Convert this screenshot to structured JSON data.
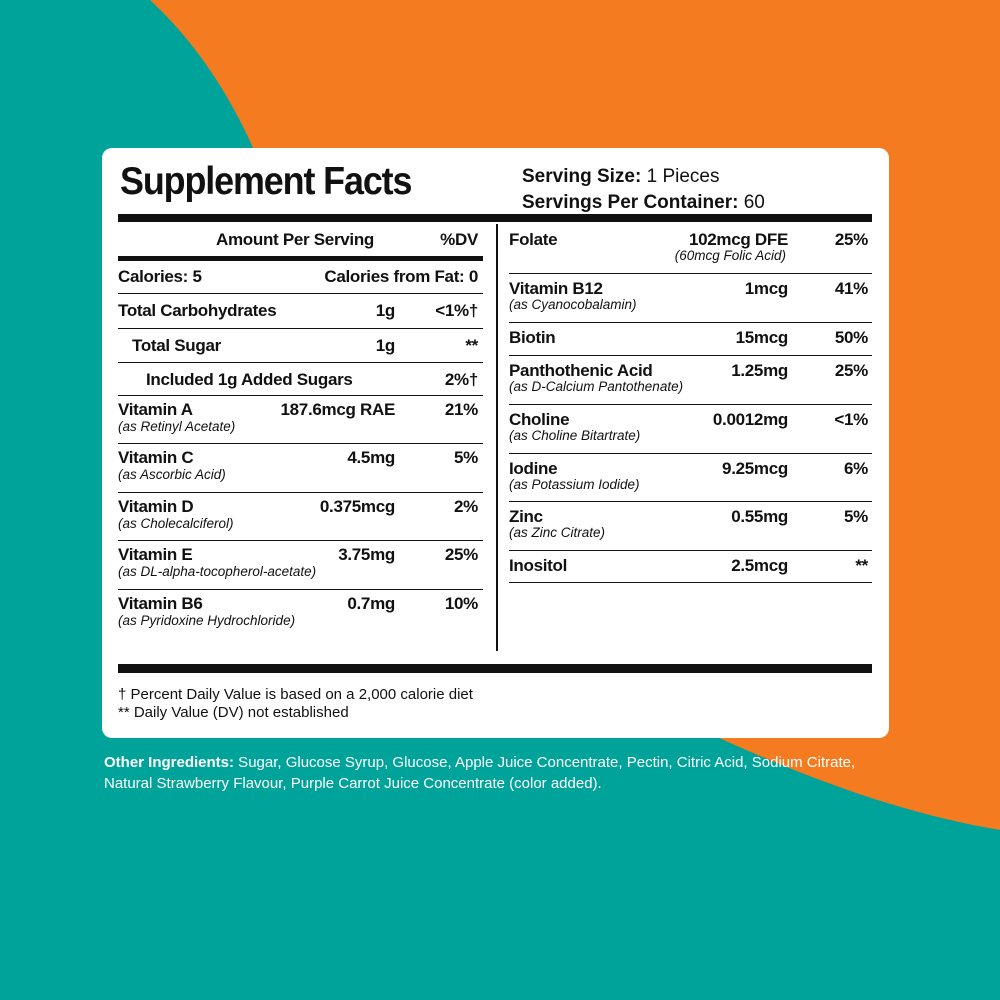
{
  "colors": {
    "teal": "#00A39A",
    "orange": "#F47B20",
    "panel": "#FFFFFF",
    "ink": "#111111"
  },
  "title": "Supplement Facts",
  "serving": {
    "size_label": "Serving Size:",
    "size_value": " 1 Pieces",
    "per_container_label": "Servings Per Container:",
    "per_container_value": " 60"
  },
  "left": {
    "header_amount": "Amount Per Serving",
    "header_dv": "%DV",
    "calories": "Calories: 5",
    "calories_fat": "Calories from Fat: 0",
    "rows": [
      {
        "name": "Total Carbohydrates",
        "amount": "1g",
        "dv": "<1%†"
      },
      {
        "name": "Total Sugar",
        "amount": "1g",
        "dv": "**"
      },
      {
        "name": "Included 1g Added Sugars",
        "amount": "",
        "dv": "2%†"
      },
      {
        "name": "Vitamin A",
        "sub": "(as Retinyl Acetate)",
        "amount": "187.6mcg RAE",
        "dv": "21%"
      },
      {
        "name": "Vitamin C",
        "sub": "(as Ascorbic Acid)",
        "amount": "4.5mg",
        "dv": "5%"
      },
      {
        "name": "Vitamin D",
        "sub": "(as Cholecalciferol)",
        "amount": "0.375mcg",
        "dv": "2%"
      },
      {
        "name": "Vitamin E",
        "sub": "(as DL-alpha-tocopherol-acetate)",
        "amount": "3.75mg",
        "dv": "25%"
      },
      {
        "name": "Vitamin B6",
        "sub": "(as Pyridoxine Hydrochloride)",
        "amount": "0.7mg",
        "dv": "10%"
      }
    ]
  },
  "right": {
    "rows": [
      {
        "name": "Folate",
        "amount": "102mcg DFE",
        "amount_sub": "(60mcg Folic Acid)",
        "dv": "25%"
      },
      {
        "name": "Vitamin B12",
        "sub": "(as Cyanocobalamin)",
        "amount": "1mcg",
        "dv": "41%"
      },
      {
        "name": "Biotin",
        "amount": "15mcg",
        "dv": "50%"
      },
      {
        "name": "Panthothenic Acid",
        "sub": "(as D-Calcium Pantothenate)",
        "amount": "1.25mg",
        "dv": "25%"
      },
      {
        "name": "Choline",
        "sub": "(as Choline Bitartrate)",
        "amount": "0.0012mg",
        "dv": "<1%"
      },
      {
        "name": "Iodine",
        "sub": "(as Potassium Iodide)",
        "amount": "9.25mcg",
        "dv": "6%"
      },
      {
        "name": "Zinc",
        "sub": "(as Zinc Citrate)",
        "amount": "0.55mg",
        "dv": "5%"
      },
      {
        "name": "Inositol",
        "amount": "2.5mcg",
        "dv": "**"
      }
    ]
  },
  "footnotes": [
    "† Percent Daily Value is based on a 2,000 calorie diet",
    "** Daily Value (DV) not established"
  ],
  "other_ingredients": {
    "label": "Other Ingredients:",
    "text": " Sugar, Glucose Syrup, Glucose, Apple Juice Concentrate, Pectin, Citric Acid, Sodium Citrate, Natural Strawberry Flavour, Purple Carrot Juice Concentrate (color added)."
  }
}
